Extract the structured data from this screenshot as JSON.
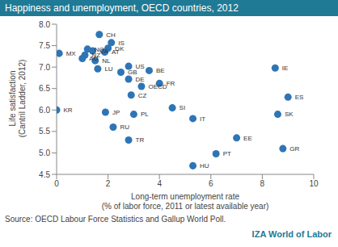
{
  "chart_data": {
    "type": "scatter",
    "title": "Happiness and unemployment, OECD countries, 2012",
    "xlabel": "Long-term unemployment rate (% of labor force, 2011 or latest available year)",
    "ylabel": "Life satisfaction (Cantril Ladder, 2012)",
    "source": "Source: OECD Labour Force Statistics and Gallup World Poll.",
    "credit": "IZA World of Labor",
    "color": "#2e75b6",
    "labels": [
      "CH",
      "IS",
      "DK",
      "AT",
      "MX",
      "NO",
      "NZ",
      "CA",
      "AU",
      "NL",
      "LU",
      "US",
      "BE",
      "GB",
      "DE",
      "FR",
      "OECD",
      "CZ",
      "SI",
      "JP",
      "PL",
      "IT",
      "RU",
      "TR",
      "EE",
      "PT",
      "HU",
      "IE",
      "ES",
      "SK",
      "GR",
      "KR"
    ],
    "x": [
      1.66,
      2.13,
      2.0,
      1.87,
      0.1,
      1.2,
      1.1,
      1.4,
      1.0,
      1.5,
      1.6,
      2.8,
      3.6,
      2.5,
      2.8,
      4.0,
      3.3,
      2.9,
      4.5,
      1.9,
      3.0,
      5.3,
      2.2,
      2.8,
      7.0,
      6.2,
      5.3,
      8.5,
      9.0,
      8.6,
      8.8,
      0.0
    ],
    "values": [
      7.76,
      7.57,
      7.44,
      7.35,
      7.32,
      7.42,
      7.28,
      7.38,
      7.2,
      7.15,
      6.96,
      7.02,
      6.92,
      6.88,
      6.72,
      6.62,
      6.55,
      6.35,
      6.05,
      5.95,
      5.9,
      5.8,
      5.6,
      5.3,
      5.35,
      4.98,
      4.7,
      6.98,
      6.3,
      5.9,
      5.1,
      6.0
    ],
    "xlim": [
      0,
      10
    ],
    "xticks": [
      0,
      2,
      4,
      6,
      8,
      10
    ],
    "ylim": [
      4.5,
      8.0
    ],
    "yticks": [
      4.5,
      {
        "value": 5.0,
        "label": "5.0"
      },
      5.5,
      {
        "value": 6.0,
        "label": "6.0"
      },
      6.5,
      {
        "value": 7.0,
        "label": "7.0"
      },
      7.5,
      {
        "value": 8.0,
        "label": "8.0"
      }
    ],
    "grid": false
  }
}
